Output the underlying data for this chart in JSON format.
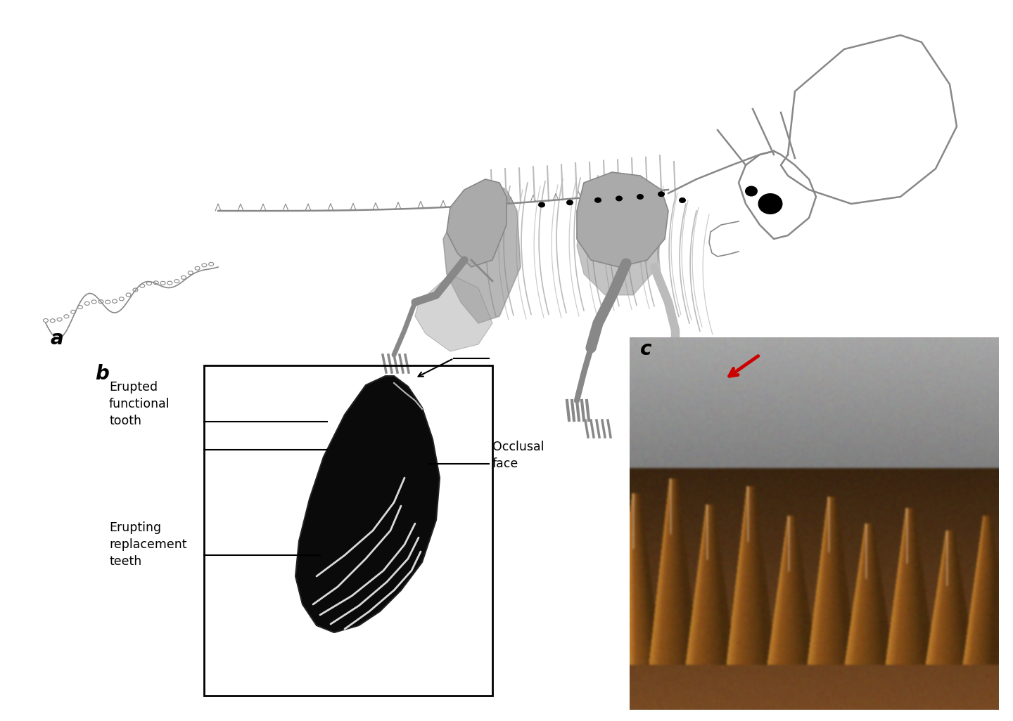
{
  "bg_color": "#ffffff",
  "border_color": "#cccccc",
  "label_a": "a",
  "label_b": "b",
  "label_c": "c",
  "label_fontsize": 20,
  "annotation_fontsize": 12.5,
  "line_color": "#000000",
  "skeleton_gray": "#888888",
  "skeleton_dark_gray": "#555555",
  "skeleton_fill_gray": "#aaaaaa",
  "skeleton_shadow": "#999999",
  "tooth_dark": "#111111",
  "red_arrow": "#cc0000",
  "photo_bg_dark": "#3d2b1a",
  "photo_bg_mid": "#7a5535",
  "photo_bg_light": "#b08060",
  "photo_gray_top": "#909090"
}
